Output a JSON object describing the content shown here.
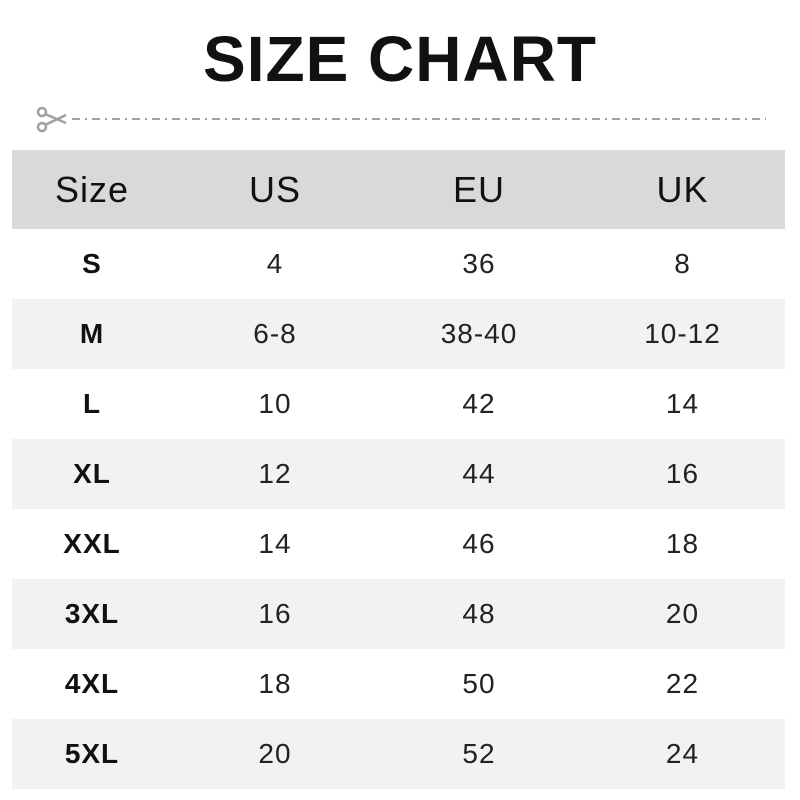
{
  "title": "SIZE CHART",
  "icon": "scissors-icon",
  "colors": {
    "header_bg": "#d9d9d9",
    "alt_row_bg": "#f2f2f2",
    "cut_line": "#a0a0a0"
  },
  "table": {
    "headers": [
      "Size",
      "US",
      "EU",
      "UK"
    ],
    "rows": [
      [
        "S",
        "4",
        "36",
        "8"
      ],
      [
        "M",
        "6-8",
        "38-40",
        "10-12"
      ],
      [
        "L",
        "10",
        "42",
        "14"
      ],
      [
        "XL",
        "12",
        "44",
        "16"
      ],
      [
        "XXL",
        "14",
        "46",
        "18"
      ],
      [
        "3XL",
        "16",
        "48",
        "20"
      ],
      [
        "4XL",
        "18",
        "50",
        "22"
      ],
      [
        "5XL",
        "20",
        "52",
        "24"
      ]
    ]
  }
}
